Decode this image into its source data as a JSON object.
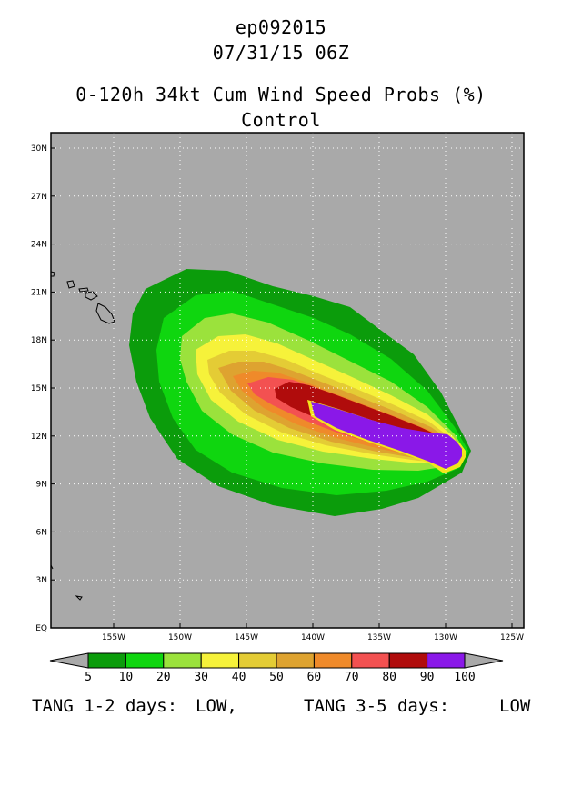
{
  "header": {
    "storm_id": "ep092015",
    "datetime": "07/31/15 06Z",
    "product": "0-120h 34kt Cum Wind Speed Probs (%)",
    "member": "Control"
  },
  "map": {
    "lat_ticks": [
      "30N",
      "27N",
      "24N",
      "21N",
      "18N",
      "15N",
      "12N",
      "9N",
      "6N",
      "3N",
      "EQ"
    ],
    "lon_ticks": [
      "155W",
      "150W",
      "145W",
      "140W",
      "135W",
      "130W",
      "125W"
    ],
    "ocean_color": "#a9a9a9",
    "grid": "dotted",
    "coastline": "Hawaiian Islands"
  },
  "colorbar": {
    "labels": [
      "5",
      "10",
      "20",
      "30",
      "40",
      "50",
      "60",
      "70",
      "80",
      "90",
      "100"
    ],
    "colors": [
      "#0b9c0b",
      "#0fd60f",
      "#9be23c",
      "#f6f23a",
      "#e4cc35",
      "#dea330",
      "#ef8a2a",
      "#f35151",
      "#b00c0c",
      "#8a18e8"
    ],
    "end_color": "#a9a9a9"
  },
  "footer": {
    "left_label": "TANG 1-2 days:",
    "left_value": "LOW,",
    "right_label": "TANG 3-5 days:",
    "right_value": "LOW"
  }
}
